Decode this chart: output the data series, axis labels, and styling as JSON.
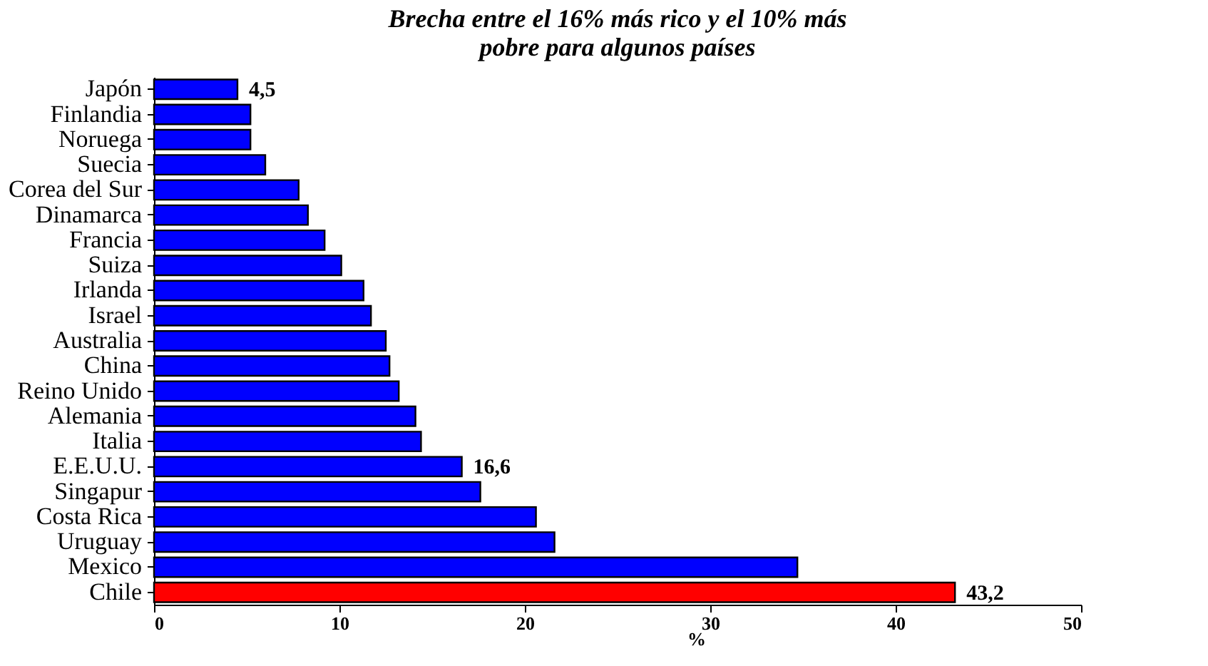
{
  "chart_data": {
    "type": "bar",
    "orientation": "horizontal",
    "title": [
      "Brecha entre el 16% más rico y el 10% más",
      "pobre para algunos países"
    ],
    "xlabel": "%",
    "categories": [
      "Japón",
      "Finlandia",
      "Noruega",
      "Suecia",
      "Corea del Sur",
      "Dinamarca",
      "Francia",
      "Suiza",
      "Irlanda",
      "Israel",
      "Australia",
      "China",
      "Reino Unido",
      "Alemania",
      "Italia",
      "E.E.U.U.",
      "Singapur",
      "Costa Rica",
      "Uruguay",
      "Mexico",
      "Chile"
    ],
    "values": [
      4.5,
      5.2,
      5.2,
      6.0,
      7.8,
      8.3,
      9.2,
      10.1,
      11.3,
      11.7,
      12.5,
      12.7,
      13.2,
      14.1,
      14.4,
      16.6,
      17.6,
      20.6,
      21.6,
      34.7,
      43.2
    ],
    "colors": [
      "#0000ff",
      "#0000ff",
      "#0000ff",
      "#0000ff",
      "#0000ff",
      "#0000ff",
      "#0000ff",
      "#0000ff",
      "#0000ff",
      "#0000ff",
      "#0000ff",
      "#0000ff",
      "#0000ff",
      "#0000ff",
      "#0000ff",
      "#0000ff",
      "#0000ff",
      "#0000ff",
      "#0000ff",
      "#0000ff",
      "#ff0000"
    ],
    "value_labels": [
      "4,5",
      null,
      null,
      null,
      null,
      null,
      null,
      null,
      null,
      null,
      null,
      null,
      null,
      null,
      null,
      "16,6",
      null,
      null,
      null,
      null,
      "43,2"
    ],
    "xlim": [
      0,
      50
    ],
    "xticks": [
      0,
      10,
      20,
      30,
      40,
      50
    ],
    "grid": false
  }
}
